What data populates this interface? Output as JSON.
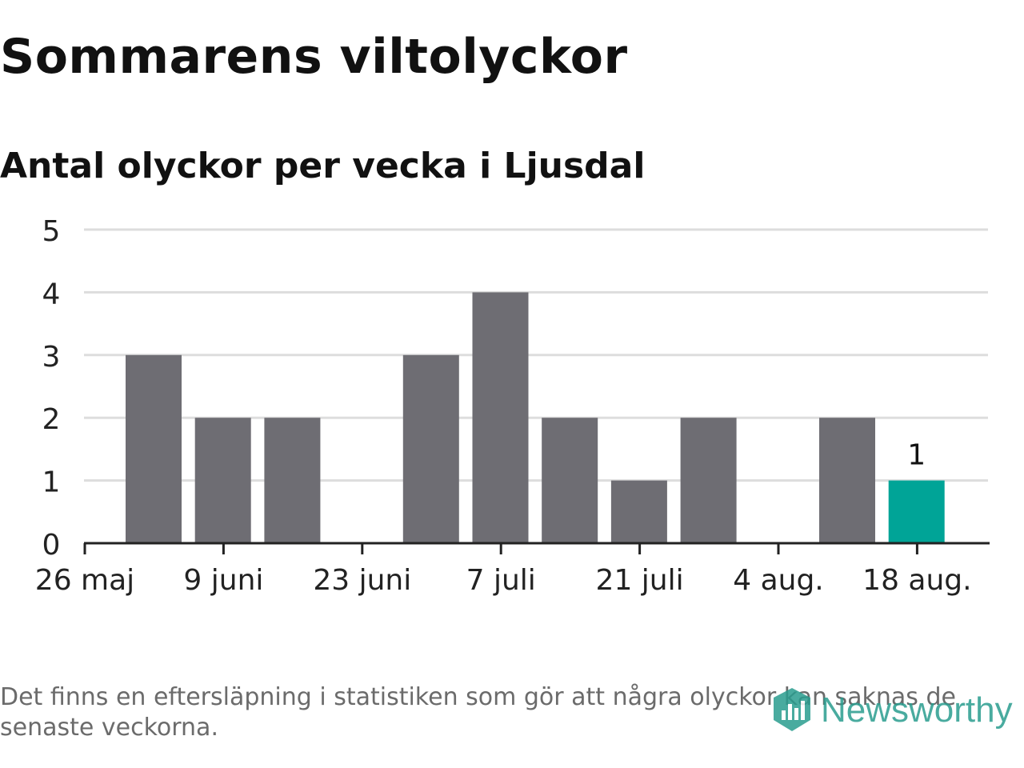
{
  "chart_data": {
    "type": "bar",
    "title": "Sommarens viltolyckor",
    "subtitle": "Antal olyckor per vecka i Ljusdal",
    "x_tick_labels": [
      "26 maj",
      "9 juni",
      "23 juni",
      "7 juli",
      "21 juli",
      "4 aug.",
      "18 aug."
    ],
    "y_ticks": [
      "0",
      "1",
      "2",
      "3",
      "4",
      "5"
    ],
    "ylim": [
      0,
      5
    ],
    "values": [
      0,
      3,
      2,
      2,
      0,
      3,
      4,
      2,
      1,
      2,
      0,
      2,
      1
    ],
    "highlight_index": 12,
    "highlight_label": "1",
    "grid": true,
    "colors": {
      "bar": "#6e6d73",
      "highlight": "#00a497",
      "grid": "#dddddd",
      "axis": "#222222"
    }
  },
  "footnote": "Det finns en eftersläpning i statistiken som gör att några olyckor kan saknas de senaste veckorna.",
  "brand": {
    "name": "Newsworthy",
    "icon": "newsworthy-logo-icon",
    "color": "#2a9d8f"
  }
}
